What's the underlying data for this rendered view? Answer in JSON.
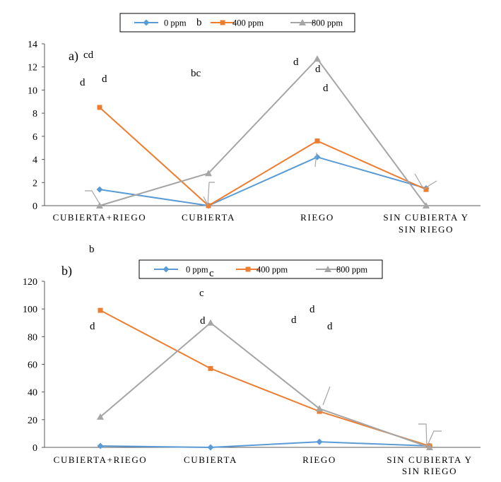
{
  "legend": {
    "entries": [
      "0 ppm",
      "400 ppm",
      "800 ppm"
    ],
    "colors": [
      "#5B9BD5",
      "#ED7D31",
      "#A5A5A5"
    ]
  },
  "chart_data": [
    {
      "type": "line",
      "panel_label": "a)",
      "categories": [
        "CUBIERTA+RIEGO",
        "CUBIERTA",
        "RIEGO",
        "SIN CUBIERTA Y SIN RIEGO"
      ],
      "category_lines": [
        [
          "CUBIERTA+RIEGO"
        ],
        [
          "CUBIERTA"
        ],
        [
          "RIEGO"
        ],
        [
          "SIN CUBIERTA Y",
          "SIN RIEGO"
        ]
      ],
      "series": [
        {
          "name": "0 ppm",
          "values": [
            1.4,
            0.0,
            4.2,
            1.5
          ],
          "color": "#5B9BD5",
          "marker": "diamond"
        },
        {
          "name": "400 ppm",
          "values": [
            8.5,
            0.0,
            5.6,
            1.4
          ],
          "color": "#ED7D31",
          "marker": "square"
        },
        {
          "name": "800 ppm",
          "values": [
            0.0,
            2.8,
            12.7,
            0.0
          ],
          "color": "#A5A5A5",
          "marker": "triangle"
        }
      ],
      "ylim": [
        0,
        14
      ],
      "yticks": [
        "0",
        "2",
        "4",
        "6",
        "8",
        "10",
        "12",
        "14"
      ],
      "legend_position": "top",
      "annotations": [
        "cd",
        "d",
        "d",
        "b",
        "bc",
        "d",
        "d",
        "d"
      ]
    },
    {
      "type": "line",
      "panel_label": "b)",
      "categories": [
        "CUBIERTA+RIEGO",
        "CUBIERTA",
        "RIEGO",
        "SIN CUBIERTA Y SIN RIEGO"
      ],
      "category_lines": [
        [
          "CUBIERTA+RIEGO"
        ],
        [
          "CUBIERTA"
        ],
        [
          "RIEGO"
        ],
        [
          "SIN CUBIERTA Y",
          "SIN RIEGO"
        ]
      ],
      "series": [
        {
          "name": "0 ppm",
          "values": [
            1,
            0,
            4,
            1
          ],
          "color": "#5B9BD5",
          "marker": "diamond"
        },
        {
          "name": "400 ppm",
          "values": [
            99,
            57,
            26,
            1
          ],
          "color": "#ED7D31",
          "marker": "square"
        },
        {
          "name": "800 ppm",
          "values": [
            22,
            90,
            28,
            0
          ],
          "color": "#A5A5A5",
          "marker": "triangle"
        }
      ],
      "ylim": [
        0,
        120
      ],
      "yticks": [
        "0",
        "20",
        "40",
        "60",
        "80",
        "100",
        "120"
      ],
      "legend_position": "top",
      "annotations": [
        "b",
        "d",
        "c",
        "c",
        "d",
        "d",
        "d",
        "d"
      ]
    }
  ]
}
